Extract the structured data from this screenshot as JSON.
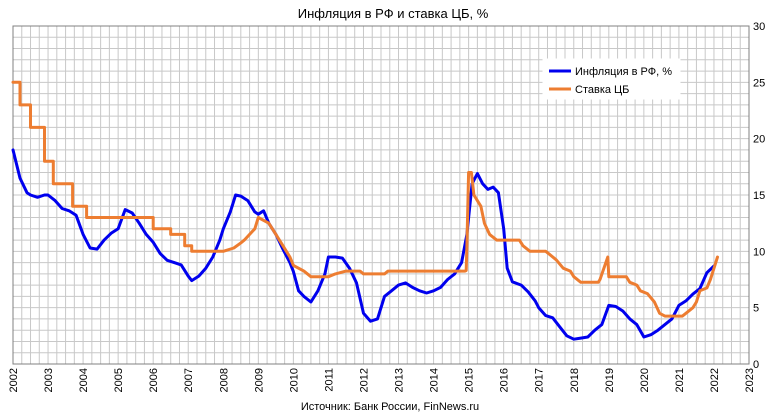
{
  "chart_data": {
    "type": "line",
    "title": "Инфляция в РФ и ставка ЦБ, %",
    "source": "Источник: Банк России, FinNews.ru",
    "xlabel": "",
    "ylabel": "",
    "xlim": [
      2002,
      2023
    ],
    "ylim": [
      0,
      30
    ],
    "x_ticks": [
      "2002",
      "2003",
      "2004",
      "2005",
      "2006",
      "2007",
      "2008",
      "2009",
      "2010",
      "2011",
      "2012",
      "2013",
      "2014",
      "2015",
      "2016",
      "2017",
      "2018",
      "2019",
      "2020",
      "2021",
      "2022",
      "2023"
    ],
    "y_ticks": [
      "0",
      "5",
      "10",
      "15",
      "20",
      "25",
      "30"
    ],
    "y_axis_side": "right",
    "grid": true,
    "legend_position": "top-right",
    "series": [
      {
        "name": "Инфляция в РФ, %",
        "color": "#0000ee",
        "points": [
          [
            2002.0,
            19.0
          ],
          [
            2002.2,
            16.5
          ],
          [
            2002.4,
            15.2
          ],
          [
            2002.5,
            15.0
          ],
          [
            2002.7,
            14.8
          ],
          [
            2002.9,
            15.0
          ],
          [
            2003.0,
            15.0
          ],
          [
            2003.2,
            14.5
          ],
          [
            2003.4,
            13.8
          ],
          [
            2003.6,
            13.6
          ],
          [
            2003.8,
            13.2
          ],
          [
            2004.0,
            11.5
          ],
          [
            2004.2,
            10.3
          ],
          [
            2004.4,
            10.2
          ],
          [
            2004.6,
            11.0
          ],
          [
            2004.8,
            11.6
          ],
          [
            2005.0,
            12.0
          ],
          [
            2005.2,
            13.7
          ],
          [
            2005.4,
            13.4
          ],
          [
            2005.6,
            12.5
          ],
          [
            2005.8,
            11.5
          ],
          [
            2006.0,
            10.8
          ],
          [
            2006.2,
            9.8
          ],
          [
            2006.4,
            9.2
          ],
          [
            2006.6,
            9.0
          ],
          [
            2006.8,
            8.8
          ],
          [
            2007.0,
            7.8
          ],
          [
            2007.1,
            7.4
          ],
          [
            2007.3,
            7.8
          ],
          [
            2007.5,
            8.5
          ],
          [
            2007.7,
            9.5
          ],
          [
            2007.9,
            11.0
          ],
          [
            2008.0,
            12.0
          ],
          [
            2008.2,
            13.5
          ],
          [
            2008.35,
            15.0
          ],
          [
            2008.5,
            14.9
          ],
          [
            2008.7,
            14.5
          ],
          [
            2008.9,
            13.5
          ],
          [
            2009.0,
            13.3
          ],
          [
            2009.15,
            13.6
          ],
          [
            2009.3,
            12.5
          ],
          [
            2009.5,
            11.5
          ],
          [
            2009.7,
            10.2
          ],
          [
            2009.9,
            9.0
          ],
          [
            2010.0,
            8.2
          ],
          [
            2010.15,
            6.5
          ],
          [
            2010.3,
            6.0
          ],
          [
            2010.5,
            5.5
          ],
          [
            2010.7,
            6.5
          ],
          [
            2010.9,
            8.0
          ],
          [
            2011.0,
            9.5
          ],
          [
            2011.2,
            9.5
          ],
          [
            2011.4,
            9.4
          ],
          [
            2011.6,
            8.5
          ],
          [
            2011.8,
            7.2
          ],
          [
            2012.0,
            4.5
          ],
          [
            2012.2,
            3.8
          ],
          [
            2012.4,
            4.0
          ],
          [
            2012.6,
            6.0
          ],
          [
            2012.8,
            6.5
          ],
          [
            2013.0,
            7.0
          ],
          [
            2013.2,
            7.2
          ],
          [
            2013.4,
            6.8
          ],
          [
            2013.6,
            6.5
          ],
          [
            2013.8,
            6.3
          ],
          [
            2014.0,
            6.5
          ],
          [
            2014.2,
            6.8
          ],
          [
            2014.4,
            7.5
          ],
          [
            2014.6,
            8.0
          ],
          [
            2014.8,
            9.0
          ],
          [
            2014.95,
            11.5
          ],
          [
            2015.1,
            16.0
          ],
          [
            2015.25,
            16.9
          ],
          [
            2015.4,
            16.0
          ],
          [
            2015.55,
            15.5
          ],
          [
            2015.7,
            15.7
          ],
          [
            2015.85,
            15.2
          ],
          [
            2016.0,
            12.0
          ],
          [
            2016.1,
            8.5
          ],
          [
            2016.25,
            7.3
          ],
          [
            2016.5,
            7.0
          ],
          [
            2016.7,
            6.4
          ],
          [
            2016.9,
            5.6
          ],
          [
            2017.0,
            5.0
          ],
          [
            2017.2,
            4.3
          ],
          [
            2017.4,
            4.1
          ],
          [
            2017.6,
            3.3
          ],
          [
            2017.8,
            2.5
          ],
          [
            2018.0,
            2.2
          ],
          [
            2018.2,
            2.3
          ],
          [
            2018.4,
            2.4
          ],
          [
            2018.6,
            3.0
          ],
          [
            2018.8,
            3.5
          ],
          [
            2019.0,
            5.2
          ],
          [
            2019.2,
            5.1
          ],
          [
            2019.4,
            4.7
          ],
          [
            2019.6,
            4.0
          ],
          [
            2019.8,
            3.5
          ],
          [
            2020.0,
            2.4
          ],
          [
            2020.2,
            2.6
          ],
          [
            2020.4,
            3.0
          ],
          [
            2020.6,
            3.5
          ],
          [
            2020.8,
            4.0
          ],
          [
            2021.0,
            5.2
          ],
          [
            2021.2,
            5.6
          ],
          [
            2021.4,
            6.2
          ],
          [
            2021.6,
            6.7
          ],
          [
            2021.8,
            8.1
          ],
          [
            2022.0,
            8.7
          ]
        ]
      },
      {
        "name": "Ставка ЦБ",
        "color": "#ed7d31",
        "points": [
          [
            2002.0,
            25.0
          ],
          [
            2002.2,
            25.0
          ],
          [
            2002.2,
            23.0
          ],
          [
            2002.5,
            23.0
          ],
          [
            2002.5,
            21.0
          ],
          [
            2002.9,
            21.0
          ],
          [
            2002.9,
            18.0
          ],
          [
            2003.15,
            18.0
          ],
          [
            2003.15,
            16.0
          ],
          [
            2003.7,
            16.0
          ],
          [
            2003.7,
            14.0
          ],
          [
            2004.1,
            14.0
          ],
          [
            2004.1,
            13.0
          ],
          [
            2006.0,
            13.0
          ],
          [
            2006.0,
            12.0
          ],
          [
            2006.5,
            12.0
          ],
          [
            2006.5,
            11.5
          ],
          [
            2006.9,
            11.5
          ],
          [
            2006.9,
            10.5
          ],
          [
            2007.1,
            10.5
          ],
          [
            2007.1,
            10.0
          ],
          [
            2008.0,
            10.0
          ],
          [
            2008.3,
            10.3
          ],
          [
            2008.5,
            10.75
          ],
          [
            2008.6,
            11.0
          ],
          [
            2008.9,
            12.0
          ],
          [
            2009.0,
            13.0
          ],
          [
            2009.3,
            12.5
          ],
          [
            2009.5,
            11.5
          ],
          [
            2009.7,
            10.5
          ],
          [
            2009.9,
            9.5
          ],
          [
            2010.0,
            8.75
          ],
          [
            2010.3,
            8.25
          ],
          [
            2010.5,
            7.75
          ],
          [
            2010.8,
            7.75
          ],
          [
            2011.0,
            7.75
          ],
          [
            2011.2,
            8.0
          ],
          [
            2011.5,
            8.25
          ],
          [
            2011.9,
            8.25
          ],
          [
            2012.0,
            8.0
          ],
          [
            2012.6,
            8.0
          ],
          [
            2012.7,
            8.25
          ],
          [
            2013.9,
            8.25
          ],
          [
            2013.95,
            8.25
          ],
          [
            2014.9,
            8.25
          ],
          [
            2014.93,
            8.3
          ],
          [
            2014.95,
            10.5
          ],
          [
            2015.0,
            17.0
          ],
          [
            2015.08,
            17.0
          ],
          [
            2015.15,
            15.0
          ],
          [
            2015.35,
            14.0
          ],
          [
            2015.45,
            12.5
          ],
          [
            2015.6,
            11.5
          ],
          [
            2015.8,
            11.0
          ],
          [
            2016.45,
            11.0
          ],
          [
            2016.55,
            10.5
          ],
          [
            2016.75,
            10.0
          ],
          [
            2017.2,
            10.0
          ],
          [
            2017.3,
            9.75
          ],
          [
            2017.5,
            9.25
          ],
          [
            2017.7,
            8.5
          ],
          [
            2017.9,
            8.25
          ],
          [
            2018.0,
            7.75
          ],
          [
            2018.2,
            7.25
          ],
          [
            2018.7,
            7.25
          ],
          [
            2018.75,
            7.5
          ],
          [
            2018.97,
            9.5
          ],
          [
            2019.0,
            7.75
          ],
          [
            2019.5,
            7.75
          ],
          [
            2019.6,
            7.25
          ],
          [
            2019.8,
            7.0
          ],
          [
            2019.9,
            6.5
          ],
          [
            2020.1,
            6.25
          ],
          [
            2020.3,
            5.5
          ],
          [
            2020.45,
            4.5
          ],
          [
            2020.6,
            4.25
          ],
          [
            2021.1,
            4.25
          ],
          [
            2021.2,
            4.5
          ],
          [
            2021.4,
            5.0
          ],
          [
            2021.5,
            5.5
          ],
          [
            2021.6,
            6.5
          ],
          [
            2021.8,
            6.75
          ],
          [
            2021.9,
            7.5
          ],
          [
            2022.0,
            8.5
          ],
          [
            2022.1,
            9.5
          ]
        ]
      }
    ]
  }
}
